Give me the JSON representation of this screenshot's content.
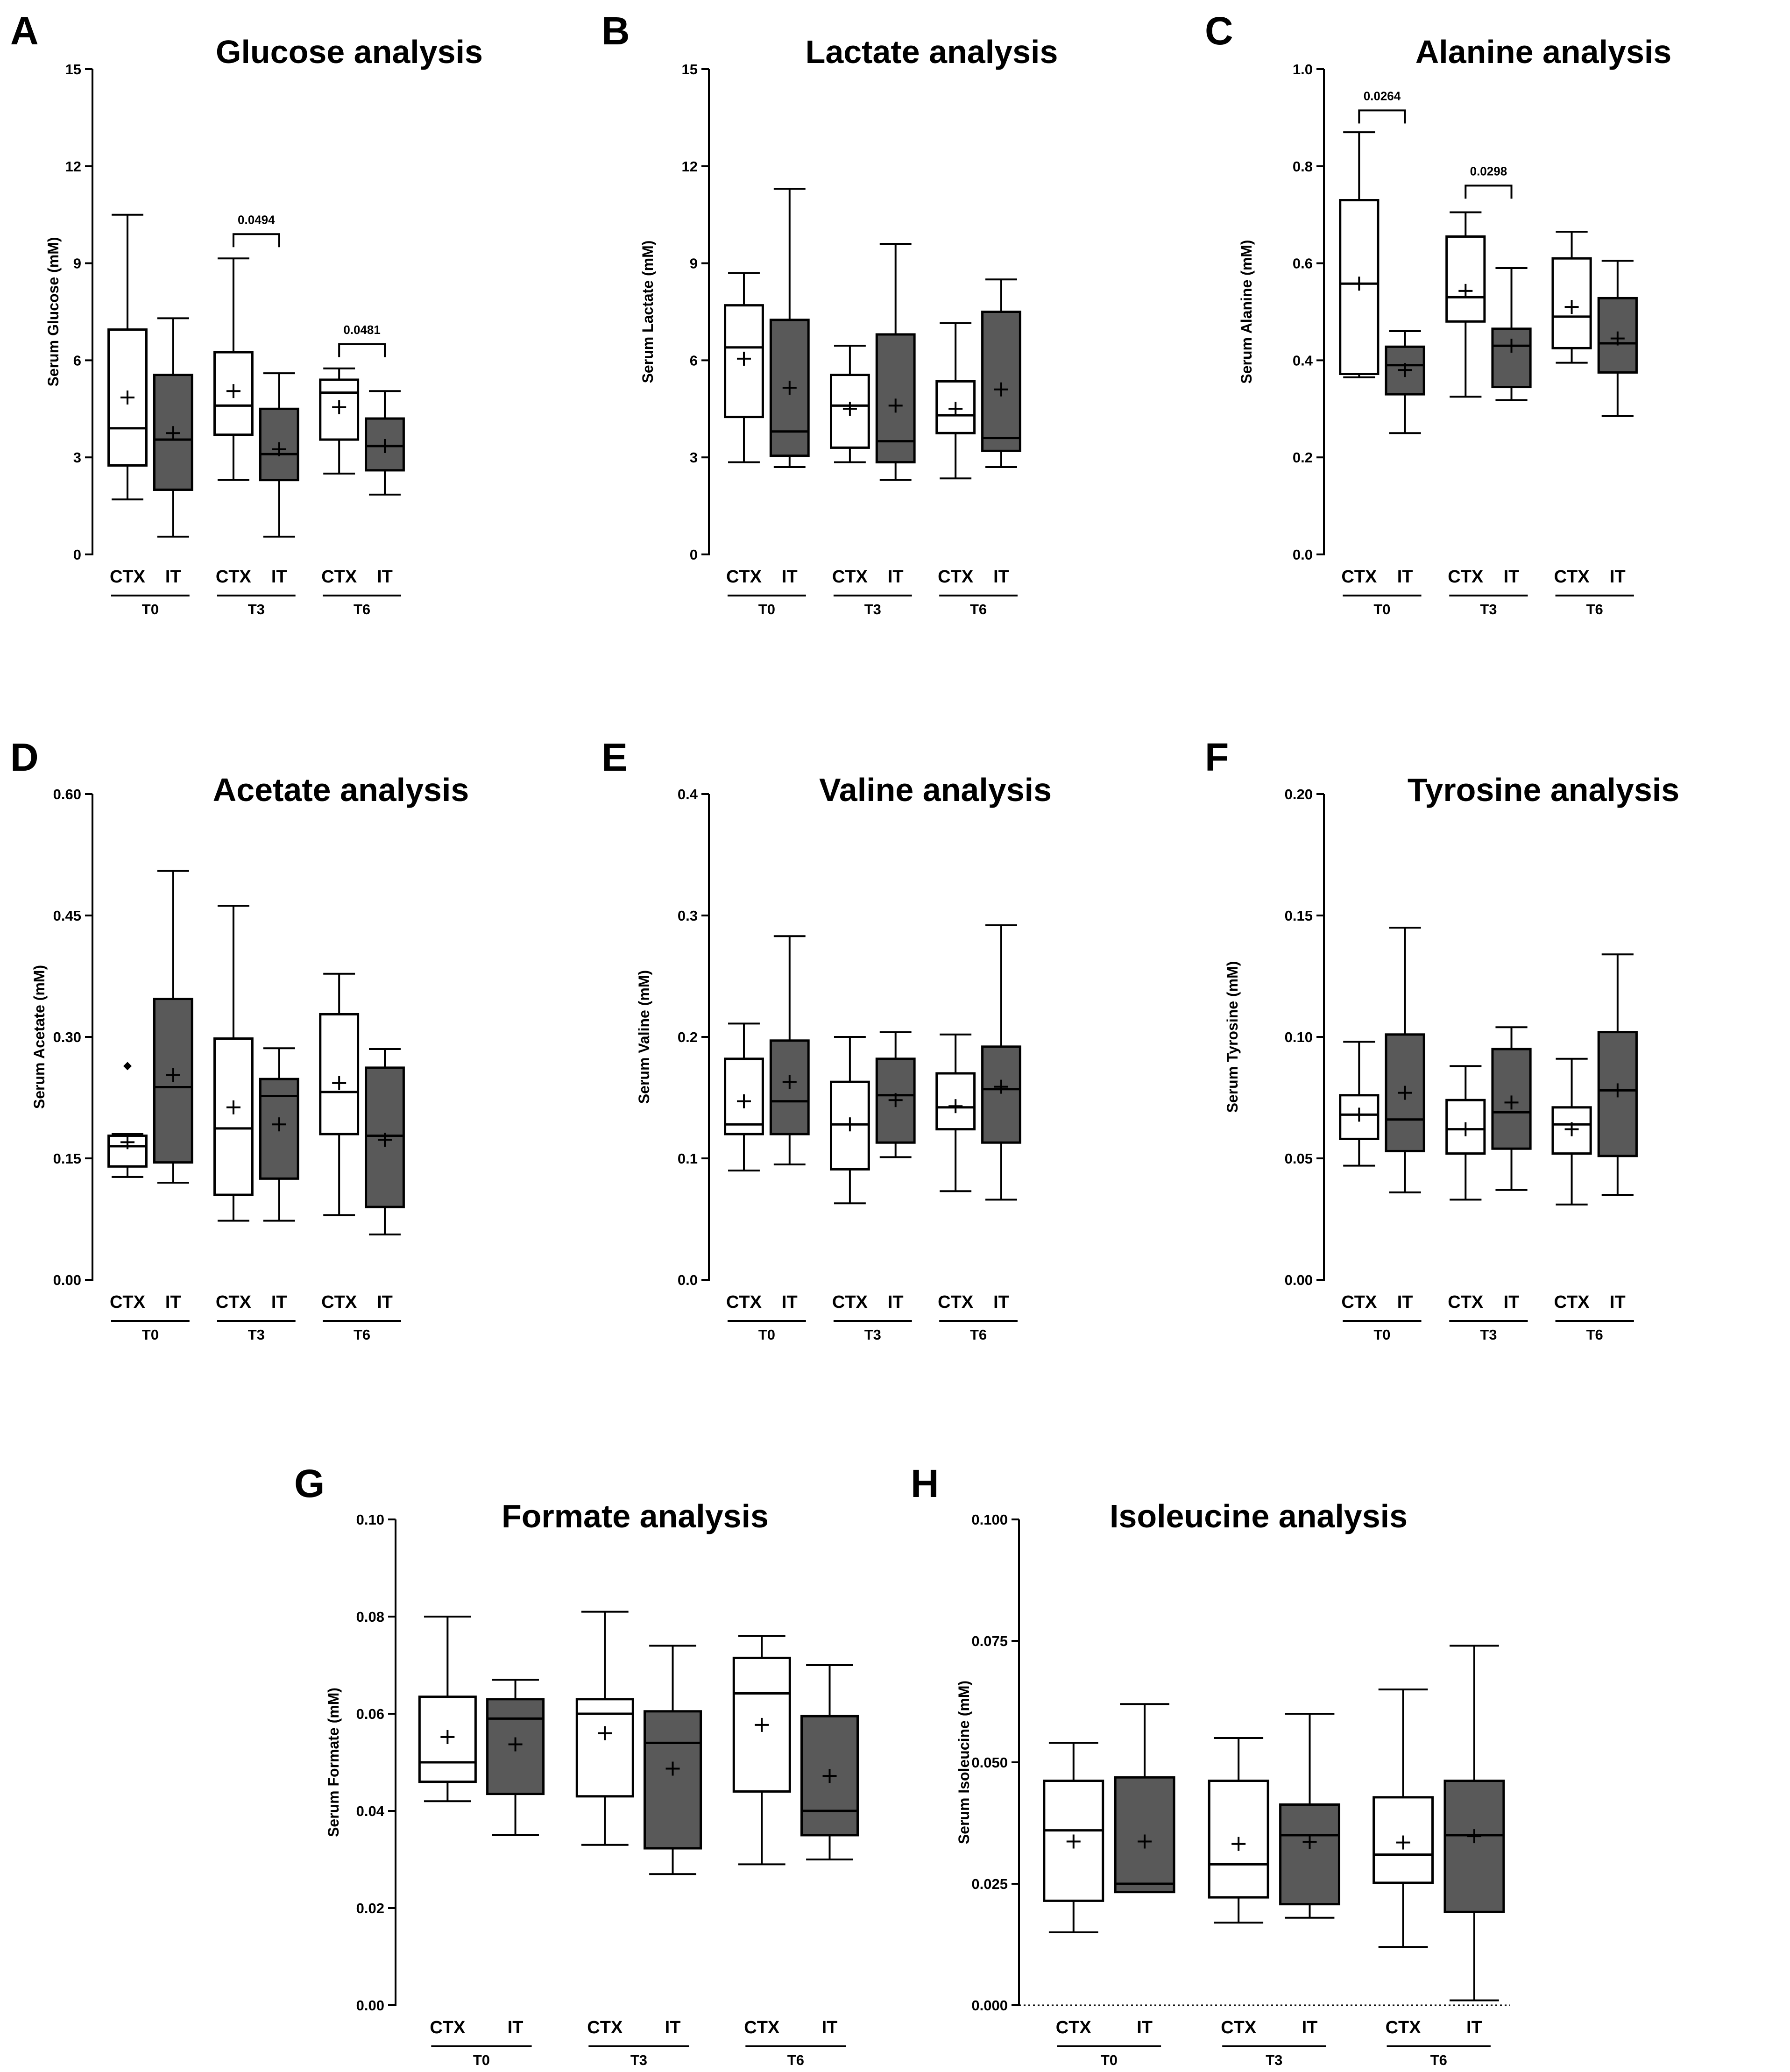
{
  "colors": {
    "ctx_fill": "#ffffff",
    "it_fill": "#595959",
    "stroke": "#000000",
    "ctx_line": "#000000",
    "it_line": "#000000"
  },
  "groups": [
    "CTX",
    "IT"
  ],
  "timepoints": [
    "T0",
    "T3",
    "T6"
  ],
  "chart_data": [
    {
      "type": "box",
      "letter": "A",
      "title": "Glucose analysis",
      "ylabel": "Serum Glucose (mM)",
      "ylim": [
        0,
        15
      ],
      "yticks": [
        "0",
        "3",
        "6",
        "9",
        "12",
        "15"
      ],
      "boxes": [
        {
          "timepoint": "T0",
          "group": "CTX",
          "min": 1.7,
          "q1": 2.75,
          "median": 3.9,
          "q3": 6.95,
          "max": 10.5,
          "mean": 4.85
        },
        {
          "timepoint": "T0",
          "group": "IT",
          "min": 0.55,
          "q1": 2.0,
          "median": 3.55,
          "q3": 5.55,
          "max": 7.3,
          "mean": 3.75
        },
        {
          "timepoint": "T3",
          "group": "CTX",
          "min": 2.3,
          "q1": 3.7,
          "median": 4.6,
          "q3": 6.25,
          "max": 9.15,
          "mean": 5.05
        },
        {
          "timepoint": "T3",
          "group": "IT",
          "min": 0.55,
          "q1": 2.3,
          "median": 3.1,
          "q3": 4.5,
          "max": 5.6,
          "mean": 3.25
        },
        {
          "timepoint": "T6",
          "group": "CTX",
          "min": 2.5,
          "q1": 3.55,
          "median": 5.0,
          "q3": 5.4,
          "max": 5.75,
          "mean": 4.55
        },
        {
          "timepoint": "T6",
          "group": "IT",
          "min": 1.85,
          "q1": 2.6,
          "median": 3.35,
          "q3": 4.2,
          "max": 5.05,
          "mean": 3.35
        }
      ],
      "significance": [
        {
          "timepoint": "T3",
          "label": "0.0494",
          "y": 9.9
        },
        {
          "timepoint": "T6",
          "label": "0.0481",
          "y": 6.5
        }
      ]
    },
    {
      "type": "box",
      "letter": "B",
      "title": "Lactate analysis",
      "ylabel": "Serum Lactate (mM)",
      "ylim": [
        0,
        15
      ],
      "yticks": [
        "0",
        "3",
        "6",
        "9",
        "12",
        "15"
      ],
      "boxes": [
        {
          "timepoint": "T0",
          "group": "CTX",
          "min": 2.85,
          "q1": 4.25,
          "median": 6.4,
          "q3": 7.7,
          "max": 8.7,
          "mean": 6.05
        },
        {
          "timepoint": "T0",
          "group": "IT",
          "min": 2.7,
          "q1": 3.05,
          "median": 3.8,
          "q3": 7.25,
          "max": 11.3,
          "mean": 5.15
        },
        {
          "timepoint": "T3",
          "group": "CTX",
          "min": 2.85,
          "q1": 3.3,
          "median": 4.6,
          "q3": 5.55,
          "max": 6.45,
          "mean": 4.5
        },
        {
          "timepoint": "T3",
          "group": "IT",
          "min": 2.3,
          "q1": 2.85,
          "median": 3.5,
          "q3": 6.8,
          "max": 9.6,
          "mean": 4.6
        },
        {
          "timepoint": "T6",
          "group": "CTX",
          "min": 2.35,
          "q1": 3.75,
          "median": 4.3,
          "q3": 5.35,
          "max": 7.15,
          "mean": 4.5
        },
        {
          "timepoint": "T6",
          "group": "IT",
          "min": 2.7,
          "q1": 3.2,
          "median": 3.6,
          "q3": 7.5,
          "max": 8.5,
          "mean": 5.1
        }
      ],
      "significance": []
    },
    {
      "type": "box",
      "letter": "C",
      "title": "Alanine analysis",
      "ylabel": "Serum Alanine (mM)",
      "ylim": [
        0,
        1.0
      ],
      "yticks": [
        "0.0",
        "0.2",
        "0.4",
        "0.6",
        "0.8",
        "1.0"
      ],
      "boxes": [
        {
          "timepoint": "T0",
          "group": "CTX",
          "min": 0.365,
          "q1": 0.372,
          "median": 0.558,
          "q3": 0.73,
          "max": 0.87,
          "mean": 0.558
        },
        {
          "timepoint": "T0",
          "group": "IT",
          "min": 0.25,
          "q1": 0.33,
          "median": 0.39,
          "q3": 0.428,
          "max": 0.46,
          "mean": 0.38
        },
        {
          "timepoint": "T3",
          "group": "CTX",
          "min": 0.325,
          "q1": 0.48,
          "median": 0.53,
          "q3": 0.655,
          "max": 0.705,
          "mean": 0.543
        },
        {
          "timepoint": "T3",
          "group": "IT",
          "min": 0.318,
          "q1": 0.345,
          "median": 0.43,
          "q3": 0.465,
          "max": 0.59,
          "mean": 0.43
        },
        {
          "timepoint": "T6",
          "group": "CTX",
          "min": 0.395,
          "q1": 0.425,
          "median": 0.49,
          "q3": 0.61,
          "max": 0.665,
          "mean": 0.51
        },
        {
          "timepoint": "T6",
          "group": "IT",
          "min": 0.285,
          "q1": 0.375,
          "median": 0.435,
          "q3": 0.528,
          "max": 0.605,
          "mean": 0.445
        }
      ],
      "significance": [
        {
          "timepoint": "T0",
          "label": "0.0264",
          "y": 0.915
        },
        {
          "timepoint": "T3",
          "label": "0.0298",
          "y": 0.76
        }
      ]
    },
    {
      "type": "box",
      "letter": "D",
      "title": "Acetate analysis",
      "ylabel": "Serum Acetate (mM)",
      "ylim": [
        0,
        0.6
      ],
      "yticks": [
        "0.00",
        "0.15",
        "0.30",
        "0.45",
        "0.60"
      ],
      "boxes": [
        {
          "timepoint": "T0",
          "group": "CTX",
          "min": 0.127,
          "q1": 0.14,
          "median": 0.165,
          "q3": 0.178,
          "max": 0.18,
          "mean": 0.17,
          "outliers": [
            0.264
          ]
        },
        {
          "timepoint": "T0",
          "group": "IT",
          "min": 0.12,
          "q1": 0.145,
          "median": 0.238,
          "q3": 0.347,
          "max": 0.505,
          "mean": 0.253
        },
        {
          "timepoint": "T3",
          "group": "CTX",
          "min": 0.073,
          "q1": 0.105,
          "median": 0.187,
          "q3": 0.298,
          "max": 0.462,
          "mean": 0.213
        },
        {
          "timepoint": "T3",
          "group": "IT",
          "min": 0.073,
          "q1": 0.125,
          "median": 0.227,
          "q3": 0.248,
          "max": 0.286,
          "mean": 0.192
        },
        {
          "timepoint": "T6",
          "group": "CTX",
          "min": 0.08,
          "q1": 0.18,
          "median": 0.232,
          "q3": 0.328,
          "max": 0.378,
          "mean": 0.243
        },
        {
          "timepoint": "T6",
          "group": "IT",
          "min": 0.056,
          "q1": 0.09,
          "median": 0.178,
          "q3": 0.262,
          "max": 0.285,
          "mean": 0.173
        }
      ],
      "significance": []
    },
    {
      "type": "box",
      "letter": "E",
      "title": "Valine analysis",
      "ylabel": "Serum Valine (mM)",
      "ylim": [
        0,
        0.4
      ],
      "yticks": [
        "0.0",
        "0.1",
        "0.2",
        "0.3",
        "0.4"
      ],
      "boxes": [
        {
          "timepoint": "T0",
          "group": "CTX",
          "min": 0.09,
          "q1": 0.12,
          "median": 0.128,
          "q3": 0.182,
          "max": 0.211,
          "mean": 0.147
        },
        {
          "timepoint": "T0",
          "group": "IT",
          "min": 0.095,
          "q1": 0.12,
          "median": 0.147,
          "q3": 0.197,
          "max": 0.283,
          "mean": 0.163
        },
        {
          "timepoint": "T3",
          "group": "CTX",
          "min": 0.063,
          "q1": 0.091,
          "median": 0.128,
          "q3": 0.163,
          "max": 0.2,
          "mean": 0.128
        },
        {
          "timepoint": "T3",
          "group": "IT",
          "min": 0.101,
          "q1": 0.113,
          "median": 0.152,
          "q3": 0.182,
          "max": 0.204,
          "mean": 0.148
        },
        {
          "timepoint": "T6",
          "group": "CTX",
          "min": 0.073,
          "q1": 0.124,
          "median": 0.142,
          "q3": 0.17,
          "max": 0.202,
          "mean": 0.143
        },
        {
          "timepoint": "T6",
          "group": "IT",
          "min": 0.066,
          "q1": 0.113,
          "median": 0.157,
          "q3": 0.192,
          "max": 0.292,
          "mean": 0.159
        }
      ],
      "significance": []
    },
    {
      "type": "box",
      "letter": "F",
      "title": "Tyrosine analysis",
      "ylabel": "Serum Tyrosine (mM)",
      "ylim": [
        0,
        0.2
      ],
      "yticks": [
        "0.00",
        "0.05",
        "0.10",
        "0.15",
        "0.20"
      ],
      "boxes": [
        {
          "timepoint": "T0",
          "group": "CTX",
          "min": 0.047,
          "q1": 0.058,
          "median": 0.068,
          "q3": 0.076,
          "max": 0.098,
          "mean": 0.068
        },
        {
          "timepoint": "T0",
          "group": "IT",
          "min": 0.036,
          "q1": 0.053,
          "median": 0.066,
          "q3": 0.101,
          "max": 0.145,
          "mean": 0.077
        },
        {
          "timepoint": "T3",
          "group": "CTX",
          "min": 0.033,
          "q1": 0.052,
          "median": 0.062,
          "q3": 0.074,
          "max": 0.088,
          "mean": 0.062
        },
        {
          "timepoint": "T3",
          "group": "IT",
          "min": 0.037,
          "q1": 0.054,
          "median": 0.069,
          "q3": 0.095,
          "max": 0.104,
          "mean": 0.073
        },
        {
          "timepoint": "T6",
          "group": "CTX",
          "min": 0.031,
          "q1": 0.052,
          "median": 0.064,
          "q3": 0.071,
          "max": 0.091,
          "mean": 0.062
        },
        {
          "timepoint": "T6",
          "group": "IT",
          "min": 0.035,
          "q1": 0.051,
          "median": 0.078,
          "q3": 0.102,
          "max": 0.134,
          "mean": 0.078
        }
      ],
      "significance": []
    },
    {
      "type": "box",
      "letter": "G",
      "title": "Formate analysis",
      "ylabel": "Serum Formate (mM)",
      "ylim": [
        0,
        0.1
      ],
      "yticks": [
        "0.00",
        "0.02",
        "0.04",
        "0.06",
        "0.08",
        "0.10"
      ],
      "boxes": [
        {
          "timepoint": "T0",
          "group": "CTX",
          "min": 0.042,
          "q1": 0.046,
          "median": 0.05,
          "q3": 0.0635,
          "max": 0.08,
          "mean": 0.0552
        },
        {
          "timepoint": "T0",
          "group": "IT",
          "min": 0.035,
          "q1": 0.0435,
          "median": 0.059,
          "q3": 0.063,
          "max": 0.067,
          "mean": 0.0537
        },
        {
          "timepoint": "T3",
          "group": "CTX",
          "min": 0.033,
          "q1": 0.043,
          "median": 0.06,
          "q3": 0.063,
          "max": 0.081,
          "mean": 0.056
        },
        {
          "timepoint": "T3",
          "group": "IT",
          "min": 0.027,
          "q1": 0.0323,
          "median": 0.054,
          "q3": 0.0605,
          "max": 0.074,
          "mean": 0.0487
        },
        {
          "timepoint": "T6",
          "group": "CTX",
          "min": 0.029,
          "q1": 0.044,
          "median": 0.0642,
          "q3": 0.0715,
          "max": 0.076,
          "mean": 0.0577
        },
        {
          "timepoint": "T6",
          "group": "IT",
          "min": 0.03,
          "q1": 0.035,
          "median": 0.04,
          "q3": 0.0595,
          "max": 0.07,
          "mean": 0.0472
        }
      ],
      "significance": []
    },
    {
      "type": "box",
      "letter": "H",
      "title": "Isoleucine analysis",
      "ylabel": "Serum Isoleucine (mM)",
      "ylim": [
        0,
        0.1
      ],
      "yticks": [
        "0.000",
        "0.025",
        "0.050",
        "0.075",
        "0.100"
      ],
      "dotted_zero": true,
      "boxes": [
        {
          "timepoint": "T0",
          "group": "CTX",
          "min": 0.015,
          "q1": 0.0215,
          "median": 0.036,
          "q3": 0.0462,
          "max": 0.054,
          "mean": 0.0337
        },
        {
          "timepoint": "T0",
          "group": "IT",
          "min": 0.0233,
          "q1": 0.0233,
          "median": 0.025,
          "q3": 0.0469,
          "max": 0.062,
          "mean": 0.0337
        },
        {
          "timepoint": "T3",
          "group": "CTX",
          "min": 0.017,
          "q1": 0.0222,
          "median": 0.029,
          "q3": 0.0462,
          "max": 0.055,
          "mean": 0.0332
        },
        {
          "timepoint": "T3",
          "group": "IT",
          "min": 0.018,
          "q1": 0.0208,
          "median": 0.035,
          "q3": 0.0413,
          "max": 0.06,
          "mean": 0.0336
        },
        {
          "timepoint": "T6",
          "group": "CTX",
          "min": 0.012,
          "q1": 0.0252,
          "median": 0.031,
          "q3": 0.0428,
          "max": 0.065,
          "mean": 0.0335
        },
        {
          "timepoint": "T6",
          "group": "IT",
          "min": 0.001,
          "q1": 0.0192,
          "median": 0.035,
          "q3": 0.0462,
          "max": 0.074,
          "mean": 0.0348
        }
      ],
      "significance": []
    }
  ]
}
